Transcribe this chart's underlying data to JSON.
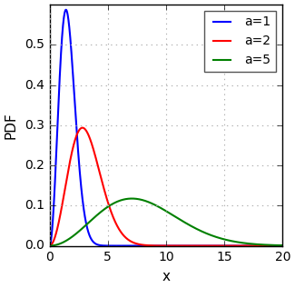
{
  "title": "",
  "xlabel": "x",
  "ylabel": "PDF",
  "xlim": [
    0,
    20
  ],
  "ylim": [
    0,
    0.6
  ],
  "yticks": [
    0.0,
    0.1,
    0.2,
    0.3,
    0.4,
    0.5
  ],
  "xticks": [
    0,
    5,
    10,
    15,
    20
  ],
  "series": [
    {
      "a": 1,
      "label": "a=1",
      "color": "#0000ff"
    },
    {
      "a": 2,
      "label": "a=2",
      "color": "#ff0000"
    },
    {
      "a": 5,
      "label": "a=5",
      "color": "#008000"
    }
  ],
  "grid_color": "#b0b0b0",
  "grid_linestyle": ":",
  "legend_loc": "upper right",
  "background_color": "#ffffff",
  "tick_label_fontsize": 10,
  "axis_label_fontsize": 11,
  "legend_fontsize": 10,
  "linewidth": 1.5,
  "figsize": [
    3.25,
    3.17
  ],
  "dpi": 100
}
